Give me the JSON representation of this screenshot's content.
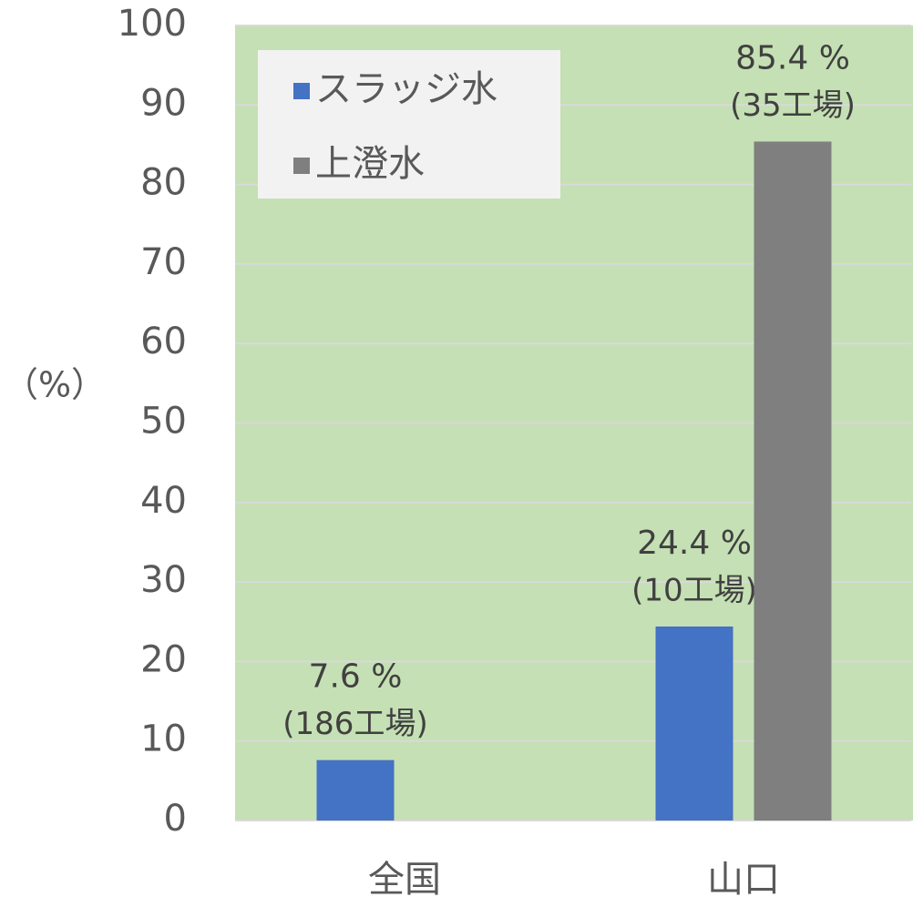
{
  "chart_data": {
    "type": "bar",
    "ylabel": "（%）",
    "categories": [
      "全国",
      "山口"
    ],
    "series": [
      {
        "name": "スラッジ水",
        "color": "#4472c4",
        "values": [
          7.6,
          24.4
        ],
        "value_labels": [
          "7.6 %",
          "24.4 %"
        ],
        "sub_labels": [
          "(186工場)",
          "(10工場)"
        ]
      },
      {
        "name": "上澄水",
        "color": "#7f7f7f",
        "values": [
          null,
          85.4
        ],
        "value_labels": [
          null,
          "85.4 %"
        ],
        "sub_labels": [
          null,
          "(35工場)"
        ]
      }
    ],
    "ylim": [
      0,
      100
    ],
    "yticks": [
      0,
      10,
      20,
      30,
      40,
      50,
      60,
      70,
      80,
      90,
      100
    ],
    "grid": true,
    "legend": "upper left",
    "plot_background": "#c5e0b4"
  }
}
